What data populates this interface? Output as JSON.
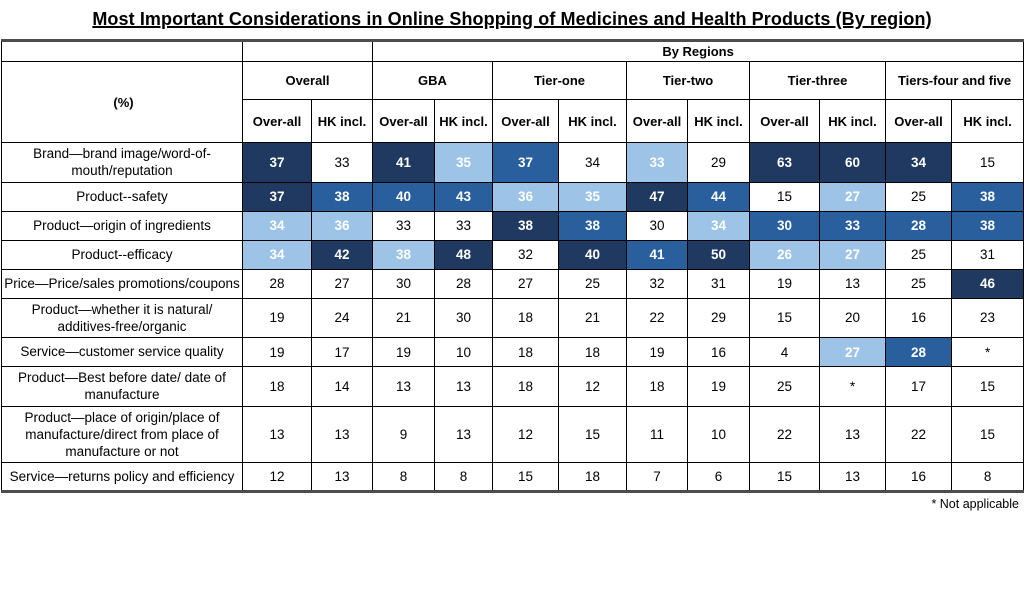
{
  "title": "Most Important Considerations in Online Shopping of Medicines and Health Products (By region)",
  "chart_data": {
    "type": "table",
    "title": "Most Important Considerations in Online Shopping of Medicines and Health Products (By region)",
    "unit_label": "(%)",
    "top_header": "By Regions",
    "top_header_note": "By Regions spans all groups except Overall",
    "groups": [
      "Overall",
      "GBA",
      "Tier-one",
      "Tier-two",
      "Tier-three",
      "Tiers-four and five"
    ],
    "subheaders": [
      "Over-all",
      "HK incl."
    ],
    "shading_colors": {
      "d": "#1F3960",
      "m": "#2A5F9E",
      "l": "#9DC3E6",
      "n": "#FFFFFF"
    },
    "shading_legend": {
      "d": "dark-navy highlight",
      "m": "medium-blue highlight",
      "l": "light-blue highlight",
      "n": "no highlight"
    },
    "rows": [
      {
        "label": "Brand—brand image/word-of-mouth/reputation",
        "values": [
          37,
          33,
          41,
          35,
          37,
          34,
          33,
          29,
          63,
          60,
          34,
          15
        ],
        "shading": [
          "d",
          "n",
          "d",
          "l",
          "m",
          "n",
          "l",
          "n",
          "d",
          "d",
          "d",
          "n"
        ]
      },
      {
        "label": "Product--safety",
        "values": [
          37,
          38,
          40,
          43,
          36,
          35,
          47,
          44,
          15,
          27,
          25,
          38
        ],
        "shading": [
          "d",
          "m",
          "m",
          "m",
          "l",
          "l",
          "d",
          "m",
          "n",
          "l",
          "n",
          "m"
        ]
      },
      {
        "label": "Product—origin of ingredients",
        "values": [
          34,
          36,
          33,
          33,
          38,
          38,
          30,
          34,
          30,
          33,
          28,
          38
        ],
        "shading": [
          "l",
          "l",
          "n",
          "n",
          "d",
          "m",
          "n",
          "l",
          "m",
          "m",
          "m",
          "m"
        ]
      },
      {
        "label": "Product--efficacy",
        "values": [
          34,
          42,
          38,
          48,
          32,
          40,
          41,
          50,
          26,
          27,
          25,
          31
        ],
        "shading": [
          "l",
          "d",
          "l",
          "d",
          "n",
          "d",
          "m",
          "d",
          "l",
          "l",
          "n",
          "n"
        ]
      },
      {
        "label": "Price—Price/sales promotions/coupons",
        "values": [
          28,
          27,
          30,
          28,
          27,
          25,
          32,
          31,
          19,
          13,
          25,
          46
        ],
        "shading": [
          "n",
          "n",
          "n",
          "n",
          "n",
          "n",
          "n",
          "n",
          "n",
          "n",
          "n",
          "d"
        ]
      },
      {
        "label": "Product—whether it is natural/ additives-free/organic",
        "values": [
          19,
          24,
          21,
          30,
          18,
          21,
          22,
          29,
          15,
          20,
          16,
          23
        ],
        "shading": [
          "n",
          "n",
          "n",
          "n",
          "n",
          "n",
          "n",
          "n",
          "n",
          "n",
          "n",
          "n"
        ]
      },
      {
        "label": "Service—customer service quality",
        "values": [
          19,
          17,
          19,
          10,
          18,
          18,
          19,
          16,
          4,
          27,
          28,
          "*"
        ],
        "shading": [
          "n",
          "n",
          "n",
          "n",
          "n",
          "n",
          "n",
          "n",
          "n",
          "l",
          "m",
          "n"
        ]
      },
      {
        "label": "Product—Best before date/ date of manufacture",
        "values": [
          18,
          14,
          13,
          13,
          18,
          12,
          18,
          19,
          25,
          "*",
          17,
          15
        ],
        "shading": [
          "n",
          "n",
          "n",
          "n",
          "n",
          "n",
          "n",
          "n",
          "n",
          "n",
          "n",
          "n"
        ]
      },
      {
        "label": "Product—place of origin/place of manufacture/direct from place of manufacture or not",
        "values": [
          13,
          13,
          9,
          13,
          12,
          15,
          11,
          10,
          22,
          13,
          22,
          15
        ],
        "shading": [
          "n",
          "n",
          "n",
          "n",
          "n",
          "n",
          "n",
          "n",
          "n",
          "n",
          "n",
          "n"
        ]
      },
      {
        "label": "Service—returns policy and efficiency",
        "values": [
          12,
          13,
          8,
          8,
          15,
          18,
          7,
          6,
          15,
          13,
          16,
          8
        ],
        "shading": [
          "n",
          "n",
          "n",
          "n",
          "n",
          "n",
          "n",
          "n",
          "n",
          "n",
          "n",
          "n"
        ]
      }
    ],
    "footnote": "* Not applicable"
  }
}
